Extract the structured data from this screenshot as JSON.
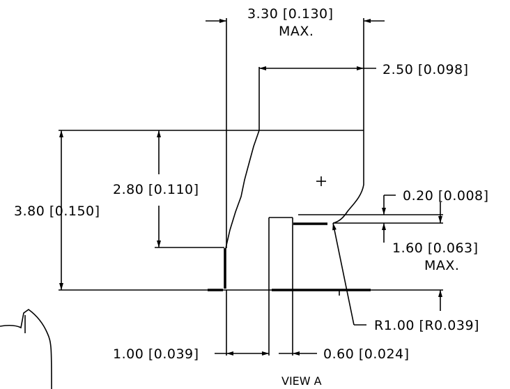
{
  "drawing": {
    "view_label": "VIEW A",
    "dimensions": {
      "top_width": "3.30 [0.130]",
      "top_width_note": "MAX.",
      "upper_offset": "2.50 [0.098]",
      "left_inner_height": "2.80 [0.110]",
      "overall_height": "3.80 [0.150]",
      "step_height": "0.20 [0.008]",
      "right_height": "1.60 [0.063]",
      "right_height_note": "MAX.",
      "radius": "R1.00 [R0.039]",
      "bottom_left_width": "1.00 [0.039]",
      "bottom_right_width": "0.60 [0.024]"
    }
  }
}
